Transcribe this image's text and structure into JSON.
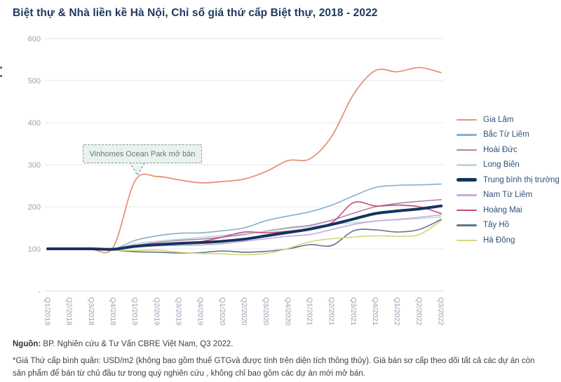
{
  "title": "Biệt thự & Nhà liền kề Hà Nội, Chỉ số giá thứ cấp Biệt thự, 2018 - 2022",
  "annotation": {
    "text": "Vinhomes Ocean Park mở bán"
  },
  "footer": {
    "source_label": "Nguồn:",
    "source_text": " BP. Nghiên cứu & Tư Vấn CBRE Việt Nam, Q3 2022.",
    "note": "*Giá Thứ cấp bình quân: USD/m2 (không bao gồm thuế GTGvà được tính trên diện tích thông thủy). Giá bán sơ cấp theo dõi tất cả các dự án còn sản phẩm để bán từ chủ đầu tư trong quý nghiên cứu , không chỉ bao gồm các dự án mới mở bán."
  },
  "colors": {
    "title_text": "#1F3A60",
    "axis_label": "#97A3B1",
    "gridline": "#EAEAEA",
    "axis_line": "#DEDEDE",
    "legend_text": "#2F517A",
    "annotation_bg": "#EAF2EE",
    "annotation_border": "#8A9898",
    "annotation_text": "#5E7B78",
    "footer_text": "#3F3F3F"
  },
  "chart_data": {
    "type": "line",
    "title": "Biệt thự & Nhà liền kề Hà Nội, Chỉ số giá thứ cấp Biệt thự, 2018 - 2022",
    "xlabel": "",
    "ylabel": "",
    "ylim": [
      0,
      600
    ],
    "grid": true,
    "legend_position": "right",
    "y_ticks": [
      {
        "value": 600,
        "label": "600"
      },
      {
        "value": 500,
        "label": "500"
      },
      {
        "value": 400,
        "label": "400"
      },
      {
        "value": 300,
        "label": "300"
      },
      {
        "value": 200,
        "label": "200"
      },
      {
        "value": 100,
        "label": "100"
      },
      {
        "value": 0,
        "label": "-"
      }
    ],
    "categories": [
      "Q1/2018",
      "Q2/2018",
      "Q3/2018",
      "Q4/2018",
      "Q1/2019",
      "Q2/2019",
      "Q3/2019",
      "Q4/2019",
      "Q1/2020",
      "Q2/2020",
      "Q3/2020",
      "Q4/2020",
      "Q1/2021",
      "Q2/2021",
      "Q3/2021",
      "Q4/2021",
      "Q1/2022",
      "Q2/2022",
      "Q3/2022"
    ],
    "annotation": {
      "text": "Vinhomes Ocean Park mở bán",
      "points_to": "Q1/2019"
    },
    "draw_order": [
      0,
      1,
      2,
      3,
      5,
      6,
      7,
      8,
      4
    ],
    "series": [
      {
        "name": "Gia Lâm",
        "color": "#E8917C",
        "width": 1.8,
        "values": [
          100,
          100,
          99,
          104,
          262,
          272,
          264,
          257,
          260,
          266,
          284,
          310,
          314,
          368,
          468,
          524,
          521,
          531,
          519
        ]
      },
      {
        "name": "Bắc Từ Liêm",
        "color": "#86AECE",
        "width": 1.6,
        "values": [
          100,
          101,
          100,
          99,
          120,
          131,
          137,
          138,
          143,
          150,
          167,
          178,
          188,
          204,
          226,
          246,
          251,
          252,
          254
        ]
      },
      {
        "name": "Hoài Đức",
        "color": "#B183AE",
        "width": 1.6,
        "values": [
          100,
          100,
          99,
          98,
          108,
          115,
          120,
          123,
          128,
          134,
          142,
          150,
          156,
          168,
          185,
          200,
          208,
          213,
          217
        ]
      },
      {
        "name": "Long Biên",
        "color": "#BFD8D6",
        "width": 1.6,
        "values": [
          100,
          100,
          100,
          99,
          112,
          118,
          123,
          127,
          132,
          136,
          141,
          148,
          153,
          158,
          162,
          166,
          169,
          172,
          176
        ]
      },
      {
        "name": "Trung bình thị trường",
        "color": "#16335E",
        "width": 4,
        "values": [
          100,
          100,
          100,
          99,
          106,
          110,
          113,
          115,
          118,
          123,
          131,
          139,
          147,
          158,
          171,
          184,
          190,
          195,
          202
        ]
      },
      {
        "name": "Nam Từ Liêm",
        "color": "#C5ABDB",
        "width": 1.6,
        "values": [
          100,
          100,
          99,
          98,
          104,
          107,
          108,
          109,
          112,
          118,
          124,
          130,
          134,
          146,
          158,
          166,
          170,
          175,
          181
        ]
      },
      {
        "name": "Hoàng Mai",
        "color": "#C8497A",
        "width": 1.6,
        "values": [
          100,
          100,
          100,
          99,
          105,
          110,
          113,
          117,
          128,
          140,
          138,
          142,
          148,
          162,
          210,
          202,
          204,
          200,
          184
        ]
      },
      {
        "name": "Tây Hồ",
        "color": "#5F7489",
        "width": 1.6,
        "values": [
          100,
          100,
          99,
          97,
          93,
          92,
          90,
          91,
          95,
          92,
          94,
          100,
          110,
          108,
          143,
          145,
          140,
          146,
          170
        ]
      },
      {
        "name": "Hà Đông",
        "color": "#D5D678",
        "width": 1.6,
        "values": [
          100,
          100,
          99,
          97,
          96,
          97,
          92,
          89,
          88,
          86,
          89,
          101,
          117,
          124,
          128,
          131,
          130,
          134,
          167
        ]
      }
    ]
  }
}
